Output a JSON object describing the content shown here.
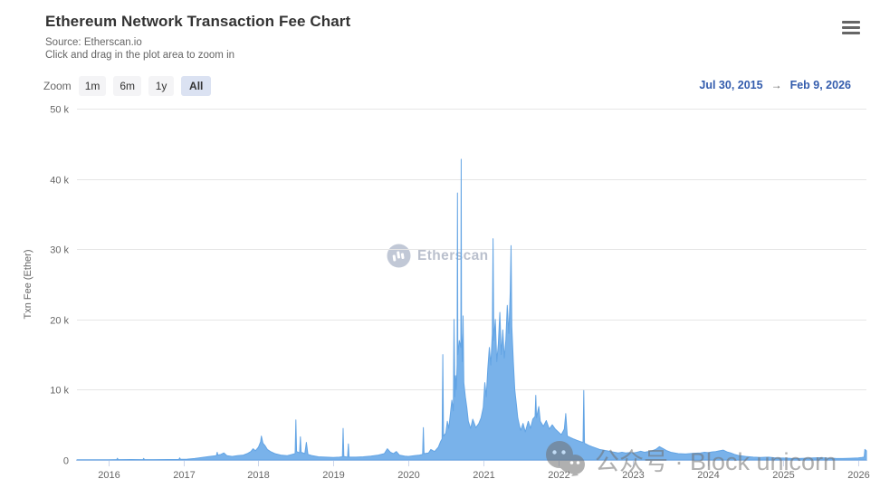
{
  "header": {
    "title": "Ethereum Network Transaction Fee Chart",
    "subtitle_source": "Source: Etherscan.io",
    "subtitle_hint": "Click and drag in the plot area to zoom in"
  },
  "toolbar": {
    "zoom_label": "Zoom",
    "buttons": [
      {
        "label": "1m",
        "selected": false
      },
      {
        "label": "6m",
        "selected": false
      },
      {
        "label": "1y",
        "selected": false
      },
      {
        "label": "All",
        "selected": true
      }
    ],
    "date_from": "Jul 30, 2015",
    "date_arrow": "→",
    "date_to": "Feb 9, 2026"
  },
  "watermarks": {
    "brand_text": "Etherscan",
    "overlay_text": "公众号 · Block unicorn"
  },
  "colors": {
    "area_fill": "#79b2ea",
    "area_line": "#63a4e4",
    "grid": "#e6e6e6",
    "axis_line": "#ccd6eb",
    "tick_text": "#666666",
    "accent_blue": "#335cad"
  },
  "chart_data": {
    "type": "area",
    "title": "Ethereum Network Transaction Fee Chart",
    "xlabel": "",
    "ylabel": "Txn Fee (Ether)",
    "series_name": "Txn Fee (Ether)",
    "unit_note": "y values in thousands of Ether per day; x values as decimal years",
    "x_range": [
      2015.58,
      2026.11
    ],
    "y_range_k": [
      0,
      50
    ],
    "grid": true,
    "legend": "none",
    "y_ticks": [
      {
        "value": 0,
        "label": "0"
      },
      {
        "value": 10,
        "label": "10 k"
      },
      {
        "value": 20,
        "label": "20 k"
      },
      {
        "value": 30,
        "label": "30 k"
      },
      {
        "value": 40,
        "label": "40 k"
      },
      {
        "value": 50,
        "label": "50 k"
      }
    ],
    "x_ticks": [
      {
        "value": 2016,
        "label": "2016"
      },
      {
        "value": 2017,
        "label": "2017"
      },
      {
        "value": 2018,
        "label": "2018"
      },
      {
        "value": 2019,
        "label": "2019"
      },
      {
        "value": 2020,
        "label": "2020"
      },
      {
        "value": 2021,
        "label": "2021"
      },
      {
        "value": 2022,
        "label": "2022"
      },
      {
        "value": 2023,
        "label": "2023"
      },
      {
        "value": 2024,
        "label": "2024"
      },
      {
        "value": 2025,
        "label": "2025"
      },
      {
        "value": 2026,
        "label": "2026"
      }
    ],
    "points": [
      [
        2015.58,
        0.02
      ],
      [
        2015.7,
        0.02
      ],
      [
        2015.85,
        0.03
      ],
      [
        2016.0,
        0.04
      ],
      [
        2016.11,
        0.05
      ],
      [
        2016.12,
        0.25
      ],
      [
        2016.13,
        0.05
      ],
      [
        2016.3,
        0.06
      ],
      [
        2016.46,
        0.05
      ],
      [
        2016.47,
        0.22
      ],
      [
        2016.48,
        0.06
      ],
      [
        2016.6,
        0.05
      ],
      [
        2016.8,
        0.07
      ],
      [
        2016.94,
        0.08
      ],
      [
        2016.95,
        0.3
      ],
      [
        2016.96,
        0.1
      ],
      [
        2017.05,
        0.12
      ],
      [
        2017.15,
        0.2
      ],
      [
        2017.25,
        0.35
      ],
      [
        2017.35,
        0.5
      ],
      [
        2017.44,
        0.6
      ],
      [
        2017.45,
        1.1
      ],
      [
        2017.46,
        0.7
      ],
      [
        2017.5,
        0.8
      ],
      [
        2017.54,
        1.0
      ],
      [
        2017.58,
        0.6
      ],
      [
        2017.65,
        0.5
      ],
      [
        2017.72,
        0.6
      ],
      [
        2017.8,
        0.7
      ],
      [
        2017.85,
        0.9
      ],
      [
        2017.9,
        1.2
      ],
      [
        2017.93,
        1.6
      ],
      [
        2017.96,
        1.3
      ],
      [
        2018.0,
        1.8
      ],
      [
        2018.03,
        2.6
      ],
      [
        2018.04,
        3.4
      ],
      [
        2018.06,
        2.4
      ],
      [
        2018.09,
        2.0
      ],
      [
        2018.12,
        1.5
      ],
      [
        2018.16,
        1.2
      ],
      [
        2018.22,
        0.9
      ],
      [
        2018.3,
        0.7
      ],
      [
        2018.38,
        0.6
      ],
      [
        2018.45,
        0.8
      ],
      [
        2018.49,
        0.9
      ],
      [
        2018.5,
        5.7
      ],
      [
        2018.51,
        1.2
      ],
      [
        2018.55,
        1.0
      ],
      [
        2018.56,
        3.3
      ],
      [
        2018.57,
        1.1
      ],
      [
        2018.62,
        0.9
      ],
      [
        2018.64,
        2.5
      ],
      [
        2018.66,
        0.8
      ],
      [
        2018.72,
        0.6
      ],
      [
        2018.8,
        0.45
      ],
      [
        2018.9,
        0.4
      ],
      [
        2019.0,
        0.35
      ],
      [
        2019.08,
        0.4
      ],
      [
        2019.12,
        0.45
      ],
      [
        2019.13,
        4.5
      ],
      [
        2019.14,
        0.5
      ],
      [
        2019.19,
        0.4
      ],
      [
        2019.2,
        2.3
      ],
      [
        2019.21,
        0.4
      ],
      [
        2019.3,
        0.4
      ],
      [
        2019.4,
        0.45
      ],
      [
        2019.5,
        0.55
      ],
      [
        2019.6,
        0.7
      ],
      [
        2019.68,
        0.9
      ],
      [
        2019.72,
        1.6
      ],
      [
        2019.76,
        1.1
      ],
      [
        2019.8,
        0.9
      ],
      [
        2019.84,
        1.2
      ],
      [
        2019.88,
        0.7
      ],
      [
        2019.95,
        0.55
      ],
      [
        2020.0,
        0.5
      ],
      [
        2020.08,
        0.6
      ],
      [
        2020.15,
        0.7
      ],
      [
        2020.19,
        0.8
      ],
      [
        2020.2,
        4.6
      ],
      [
        2020.21,
        0.9
      ],
      [
        2020.27,
        1.0
      ],
      [
        2020.3,
        1.5
      ],
      [
        2020.35,
        1.2
      ],
      [
        2020.4,
        1.8
      ],
      [
        2020.43,
        2.6
      ],
      [
        2020.45,
        3.0
      ],
      [
        2020.46,
        15.0
      ],
      [
        2020.47,
        3.4
      ],
      [
        2020.5,
        3.8
      ],
      [
        2020.52,
        5.5
      ],
      [
        2020.54,
        4.5
      ],
      [
        2020.56,
        6.5
      ],
      [
        2020.58,
        8.5
      ],
      [
        2020.6,
        7.0
      ],
      [
        2020.61,
        20.0
      ],
      [
        2020.62,
        9.0
      ],
      [
        2020.63,
        12.0
      ],
      [
        2020.64,
        10.0
      ],
      [
        2020.65,
        13.5
      ],
      [
        2020.655,
        38.0
      ],
      [
        2020.66,
        15.0
      ],
      [
        2020.68,
        17.0
      ],
      [
        2020.7,
        16.0
      ],
      [
        2020.705,
        42.8
      ],
      [
        2020.71,
        18.0
      ],
      [
        2020.72,
        14.0
      ],
      [
        2020.73,
        20.5
      ],
      [
        2020.74,
        11.0
      ],
      [
        2020.76,
        9.0
      ],
      [
        2020.78,
        7.5
      ],
      [
        2020.8,
        5.5
      ],
      [
        2020.83,
        4.5
      ],
      [
        2020.86,
        5.8
      ],
      [
        2020.9,
        4.6
      ],
      [
        2020.94,
        5.2
      ],
      [
        2020.97,
        6.0
      ],
      [
        2021.0,
        7.5
      ],
      [
        2021.02,
        11.0
      ],
      [
        2021.04,
        9.0
      ],
      [
        2021.06,
        13.0
      ],
      [
        2021.08,
        16.0
      ],
      [
        2021.1,
        13.5
      ],
      [
        2021.12,
        18.0
      ],
      [
        2021.13,
        31.5
      ],
      [
        2021.14,
        17.0
      ],
      [
        2021.16,
        20.0
      ],
      [
        2021.18,
        14.0
      ],
      [
        2021.2,
        16.5
      ],
      [
        2021.22,
        21.0
      ],
      [
        2021.24,
        15.0
      ],
      [
        2021.26,
        18.5
      ],
      [
        2021.28,
        14.5
      ],
      [
        2021.3,
        17.0
      ],
      [
        2021.32,
        22.0
      ],
      [
        2021.34,
        18.0
      ],
      [
        2021.36,
        24.0
      ],
      [
        2021.37,
        30.5
      ],
      [
        2021.38,
        19.0
      ],
      [
        2021.4,
        14.0
      ],
      [
        2021.42,
        10.0
      ],
      [
        2021.44,
        8.0
      ],
      [
        2021.46,
        6.0
      ],
      [
        2021.48,
        5.0
      ],
      [
        2021.5,
        4.2
      ],
      [
        2021.53,
        5.2
      ],
      [
        2021.56,
        4.0
      ],
      [
        2021.6,
        5.5
      ],
      [
        2021.63,
        4.5
      ],
      [
        2021.66,
        5.8
      ],
      [
        2021.69,
        6.2
      ],
      [
        2021.7,
        9.2
      ],
      [
        2021.71,
        6.0
      ],
      [
        2021.74,
        7.6
      ],
      [
        2021.76,
        5.5
      ],
      [
        2021.8,
        4.8
      ],
      [
        2021.84,
        5.6
      ],
      [
        2021.88,
        4.4
      ],
      [
        2021.92,
        5.0
      ],
      [
        2021.96,
        4.4
      ],
      [
        2022.0,
        4.0
      ],
      [
        2022.04,
        3.6
      ],
      [
        2022.08,
        4.4
      ],
      [
        2022.1,
        6.6
      ],
      [
        2022.12,
        3.4
      ],
      [
        2022.16,
        3.2
      ],
      [
        2022.2,
        3.0
      ],
      [
        2022.25,
        2.8
      ],
      [
        2022.3,
        2.6
      ],
      [
        2022.33,
        2.5
      ],
      [
        2022.34,
        9.9
      ],
      [
        2022.35,
        2.4
      ],
      [
        2022.4,
        2.1
      ],
      [
        2022.45,
        1.9
      ],
      [
        2022.5,
        1.7
      ],
      [
        2022.55,
        1.5
      ],
      [
        2022.6,
        1.4
      ],
      [
        2022.65,
        1.3
      ],
      [
        2022.7,
        1.2
      ],
      [
        2022.75,
        1.1
      ],
      [
        2022.8,
        1.0
      ],
      [
        2022.85,
        1.1
      ],
      [
        2022.9,
        1.0
      ],
      [
        2022.95,
        1.05
      ],
      [
        2023.0,
        1.0
      ],
      [
        2023.05,
        1.1
      ],
      [
        2023.1,
        1.25
      ],
      [
        2023.15,
        1.1
      ],
      [
        2023.2,
        1.2
      ],
      [
        2023.25,
        1.3
      ],
      [
        2023.3,
        1.5
      ],
      [
        2023.35,
        1.9
      ],
      [
        2023.4,
        1.6
      ],
      [
        2023.45,
        1.3
      ],
      [
        2023.5,
        1.1
      ],
      [
        2023.55,
        1.0
      ],
      [
        2023.6,
        0.9
      ],
      [
        2023.7,
        0.85
      ],
      [
        2023.8,
        0.95
      ],
      [
        2023.9,
        1.0
      ],
      [
        2023.95,
        1.1
      ],
      [
        2024.0,
        1.05
      ],
      [
        2024.05,
        1.15
      ],
      [
        2024.1,
        1.2
      ],
      [
        2024.15,
        1.3
      ],
      [
        2024.2,
        1.4
      ],
      [
        2024.25,
        1.15
      ],
      [
        2024.3,
        1.0
      ],
      [
        2024.35,
        0.8
      ],
      [
        2024.4,
        0.65
      ],
      [
        2024.5,
        0.5
      ],
      [
        2024.6,
        0.4
      ],
      [
        2024.7,
        0.35
      ],
      [
        2024.8,
        0.4
      ],
      [
        2024.9,
        0.3
      ],
      [
        2025.0,
        0.27
      ],
      [
        2025.1,
        0.22
      ],
      [
        2025.2,
        0.2
      ],
      [
        2025.3,
        0.24
      ],
      [
        2025.4,
        0.28
      ],
      [
        2025.5,
        0.32
      ],
      [
        2025.6,
        0.26
      ],
      [
        2025.7,
        0.22
      ],
      [
        2025.8,
        0.2
      ],
      [
        2025.9,
        0.24
      ],
      [
        2026.0,
        0.3
      ],
      [
        2026.05,
        0.35
      ],
      [
        2026.08,
        0.4
      ],
      [
        2026.09,
        1.5
      ],
      [
        2026.11,
        1.3
      ]
    ]
  }
}
